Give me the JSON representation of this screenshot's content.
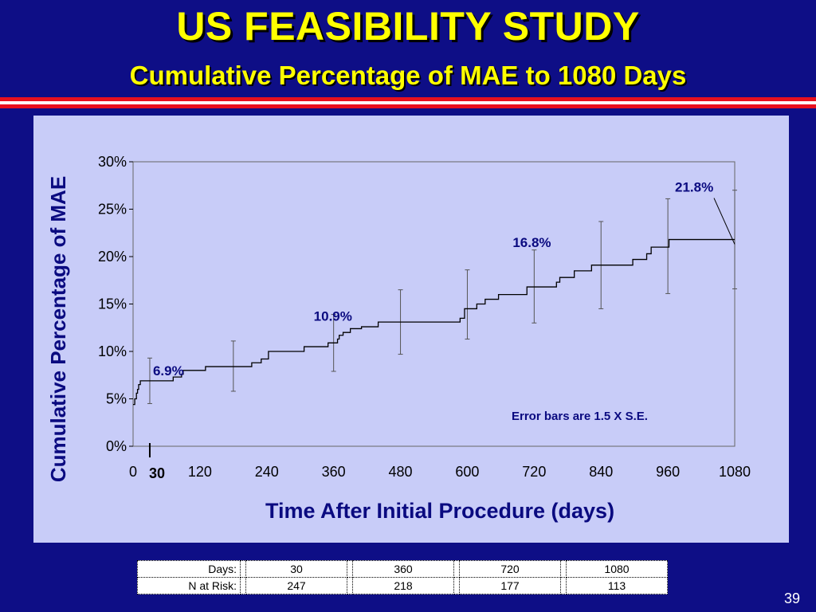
{
  "slide": {
    "title": "US FEASIBILITY STUDY",
    "subtitle": "Cumulative Percentage of MAE to 1080 Days",
    "page_number": "39"
  },
  "chart_data": {
    "type": "line",
    "ylabel": "Cumulative Percentage of MAE",
    "xlabel": "Time After Initial Procedure (days)",
    "xlim": [
      0,
      1080
    ],
    "ylim": [
      0,
      30
    ],
    "x_ticks": [
      0,
      120,
      240,
      360,
      480,
      600,
      720,
      840,
      960,
      1080
    ],
    "x_tick_labels": [
      "0",
      "120",
      "240",
      "360",
      "480",
      "600",
      "720",
      "840",
      "960",
      "1080"
    ],
    "extra_tick": {
      "x": 30,
      "label": "30"
    },
    "y_ticks": [
      0,
      5,
      10,
      15,
      20,
      25,
      30
    ],
    "y_tick_labels": [
      "0%",
      "5%",
      "10%",
      "15%",
      "20%",
      "25%",
      "30%"
    ],
    "series": [
      {
        "step": true,
        "x": [
          0,
          3,
          6,
          8,
          10,
          13,
          72,
          87,
          90,
          130,
          213,
          230,
          243,
          307,
          350,
          367,
          370,
          377,
          390,
          410,
          440,
          587,
          595,
          617,
          632,
          656,
          707,
          760,
          766,
          792,
          823,
          897,
          922,
          930,
          962,
          1080
        ],
        "y": [
          4.4,
          5.0,
          5.6,
          6.0,
          6.5,
          6.9,
          7.3,
          7.6,
          8.0,
          8.4,
          8.8,
          9.2,
          10.0,
          10.5,
          10.9,
          11.3,
          11.7,
          12.0,
          12.4,
          12.6,
          13.1,
          13.5,
          14.5,
          15.0,
          15.5,
          16.0,
          16.8,
          17.3,
          17.8,
          18.5,
          19.1,
          19.7,
          20.3,
          21.0,
          21.8,
          21.8
        ]
      }
    ],
    "error_bars": [
      {
        "x": 30,
        "low": 4.5,
        "high": 9.3
      },
      {
        "x": 180,
        "low": 5.8,
        "high": 11.1
      },
      {
        "x": 360,
        "low": 7.9,
        "high": 13.9
      },
      {
        "x": 480,
        "low": 9.7,
        "high": 16.5
      },
      {
        "x": 600,
        "low": 11.3,
        "high": 18.6
      },
      {
        "x": 720,
        "low": 13.0,
        "high": 20.7
      },
      {
        "x": 840,
        "low": 14.5,
        "high": 23.7
      },
      {
        "x": 960,
        "low": 16.1,
        "high": 26.1
      },
      {
        "x": 1080,
        "low": 16.6,
        "high": 27.0
      }
    ],
    "annotations": [
      {
        "text": "6.9%",
        "x": 30,
        "y": 6.9
      },
      {
        "text": "10.9%",
        "x": 360,
        "y": 10.9
      },
      {
        "text": "16.8%",
        "x": 720,
        "y": 16.8
      },
      {
        "text": "21.8%",
        "x": 1080,
        "y": 21.8
      }
    ],
    "note": "Error bars are 1.5 X S.E."
  },
  "table": {
    "rows": [
      {
        "label": "Days:",
        "values": [
          "30",
          "360",
          "720",
          "1080"
        ]
      },
      {
        "label": "N at Risk:",
        "values": [
          "247",
          "218",
          "177",
          "113"
        ]
      }
    ]
  },
  "colors": {
    "background": "#0e0e86",
    "title": "#ffff00",
    "panel": "#c8ccf8",
    "stripe_red": "#e8101e",
    "stripe_white": "#ffffff"
  }
}
